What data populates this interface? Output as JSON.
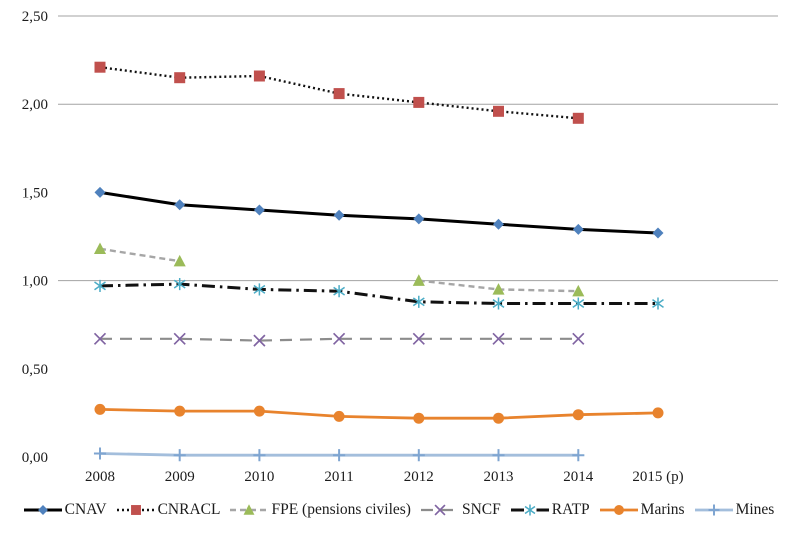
{
  "chart_data": {
    "type": "line",
    "title": "",
    "xlabel": "",
    "ylabel": "",
    "categories": [
      "2008",
      "2009",
      "2010",
      "2011",
      "2012",
      "2013",
      "2014",
      "2015 (p)"
    ],
    "series": [
      {
        "name": "CNAV",
        "line_color": "#000000",
        "dash": "solid",
        "line_width": 3,
        "marker": "diamond",
        "marker_color": "#4F81BD",
        "values": [
          1.5,
          1.43,
          1.4,
          1.37,
          1.35,
          1.32,
          1.29,
          1.27
        ]
      },
      {
        "name": "CNRACL",
        "line_color": "#111111",
        "dash": "dotted",
        "line_width": 2.4,
        "marker": "square",
        "marker_color": "#C0504D",
        "values": [
          2.21,
          2.15,
          2.16,
          2.06,
          2.01,
          1.96,
          1.92,
          null
        ]
      },
      {
        "name": "FPE (pensions civiles)",
        "line_color": "#A6A6A6",
        "dash": "dashed",
        "line_width": 2.4,
        "marker": "triangle",
        "marker_color": "#9BBB59",
        "values": [
          1.18,
          1.11,
          null,
          null,
          1.0,
          0.95,
          0.94,
          null
        ]
      },
      {
        "name": "SNCF",
        "line_color": "#8C8C8C",
        "dash": "longdash",
        "line_width": 2.2,
        "marker": "x",
        "marker_color": "#8064A2",
        "values": [
          0.67,
          0.67,
          0.66,
          0.67,
          0.67,
          0.67,
          0.67,
          null
        ]
      },
      {
        "name": "RATP",
        "line_color": "#111111",
        "dash": "dashdot",
        "line_width": 3,
        "marker": "asterisk",
        "marker_color": "#4BACC6",
        "values": [
          0.97,
          0.98,
          0.95,
          0.94,
          0.88,
          0.87,
          0.87,
          0.87
        ]
      },
      {
        "name": "Marins",
        "line_color": "#E8832D",
        "dash": "solid",
        "line_width": 2.8,
        "marker": "circle",
        "marker_color": "#E8832D",
        "values": [
          0.27,
          0.26,
          0.26,
          0.23,
          0.22,
          0.22,
          0.24,
          0.25
        ]
      },
      {
        "name": "Mines",
        "line_color": "#A3BEDC",
        "dash": "solid",
        "line_width": 2.8,
        "marker": "plus",
        "marker_color": "#7FA5D1",
        "values": [
          0.02,
          0.01,
          0.01,
          0.01,
          0.01,
          0.01,
          0.01,
          null
        ]
      }
    ],
    "ylim": [
      0,
      2.5
    ],
    "yticks": [
      "2,50",
      "2,00",
      "1,50",
      "1,00",
      "0,50",
      "0,00"
    ],
    "ytick_values": [
      2.5,
      2.0,
      1.5,
      1.0,
      0.5,
      0.0
    ],
    "gridline_values": [
      2.5,
      2.0,
      1.0
    ],
    "grid_color": "#A3A3A3",
    "legend_position": "bottom",
    "legend_labels": [
      "CNAV",
      "CNRACL",
      "FPE (pensions civiles)",
      "SNCF",
      "RATP",
      "Marins",
      "Mines"
    ]
  }
}
